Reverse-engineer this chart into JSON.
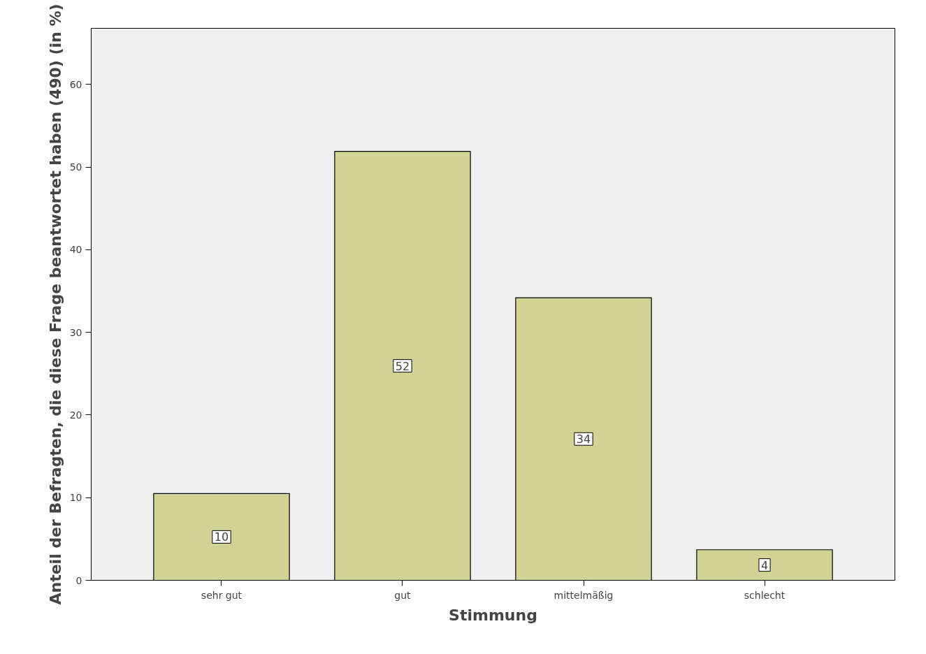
{
  "chart_data": {
    "type": "bar",
    "xlabel": "Stimmung",
    "ylabel": "Anteil der Befragten, die diese Frage beantwortet haben (490) (in %)",
    "categories": [
      "sehr gut",
      "gut",
      "mittelmäßig",
      "schlecht"
    ],
    "values": [
      10.5,
      51.9,
      34.2,
      3.7
    ],
    "value_labels": [
      "10",
      "52",
      "34",
      "4"
    ],
    "color": "#d1d294",
    "ylim": [
      0,
      66.8
    ],
    "yticks": [
      0,
      10,
      20,
      30,
      40,
      50,
      60
    ],
    "grid": false
  }
}
